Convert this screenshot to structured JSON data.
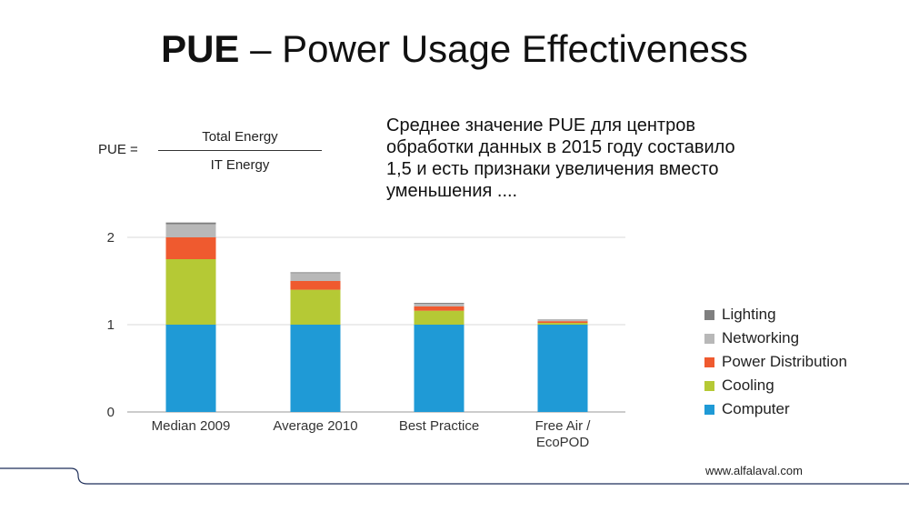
{
  "slide": {
    "title_bold": "PUE",
    "title_rest": " – Power Usage Effectiveness",
    "formula": {
      "lhs": "PUE =",
      "numerator": "Total Energy",
      "denominator": "IT Energy"
    },
    "description_lines": [
      "Среднее значение PUE для центров",
      "обработки данных в 2015 году составило",
      "1,5 и есть признаки увеличения вместо",
      "уменьшения ...."
    ],
    "footer_url": "www.alfalaval.com"
  },
  "chart_data": {
    "type": "bar",
    "stacked": true,
    "categories": [
      [
        "Median 2009"
      ],
      [
        "Average 2010"
      ],
      [
        "Best Practice"
      ],
      [
        "Free Air /",
        "EcoPOD"
      ]
    ],
    "series": [
      {
        "name": "Computer",
        "color": "#1f9ad6",
        "values": [
          1.0,
          1.0,
          1.0,
          1.0
        ]
      },
      {
        "name": "Cooling",
        "color": "#b5c935",
        "values": [
          0.75,
          0.4,
          0.16,
          0.02
        ]
      },
      {
        "name": "Power Distribution",
        "color": "#ef5a2f",
        "values": [
          0.25,
          0.1,
          0.05,
          0.02
        ]
      },
      {
        "name": "Networking",
        "color": "#b8b8b8",
        "values": [
          0.15,
          0.09,
          0.03,
          0.015
        ]
      },
      {
        "name": "Lighting",
        "color": "#7f7f7f",
        "values": [
          0.02,
          0.01,
          0.01,
          0.005
        ]
      }
    ],
    "ylim": [
      0,
      2.2
    ],
    "yticks": [
      0,
      1,
      2
    ],
    "grid": true,
    "legend_position": "right",
    "legend_order": [
      "Lighting",
      "Networking",
      "Power Distribution",
      "Cooling",
      "Computer"
    ]
  }
}
